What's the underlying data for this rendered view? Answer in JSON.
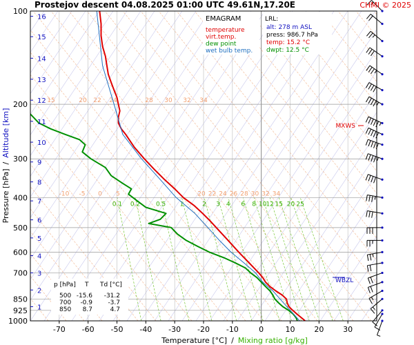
{
  "header": {
    "title": "Prostejov   descent   04.08.2025 01:00 UTC  49.61N,17.20E",
    "copyright": "CHMI © 2025"
  },
  "chart_data": {
    "type": "line",
    "subtype": "emagram",
    "xlabel_temp": "Temperature [°C]",
    "xlabel_sep": "/",
    "xlabel_mix": "Mixing ratio [g/kg]",
    "ylabel_pressure": "Pressure [hPa]",
    "ylabel_sep": "/",
    "ylabel_alt": "Altitude [km]",
    "xlim": [
      -80,
      40
    ],
    "ylim_pressure": [
      1000,
      100
    ],
    "y_scale": "log",
    "x_ticks": [
      -70,
      -60,
      -50,
      -40,
      -30,
      -20,
      -10,
      0,
      10,
      20,
      30
    ],
    "pressure_ticks": [
      100,
      200,
      300,
      400,
      500,
      600,
      700,
      850,
      925,
      1000
    ],
    "altitude_ticks": [
      {
        "km": "1",
        "p": 900
      },
      {
        "km": "2",
        "p": 795
      },
      {
        "km": "3",
        "p": 700
      },
      {
        "km": "4",
        "p": 616
      },
      {
        "km": "5",
        "p": 540
      },
      {
        "km": "6",
        "p": 472
      },
      {
        "km": "7",
        "p": 410
      },
      {
        "km": "8",
        "p": 356
      },
      {
        "km": "9",
        "p": 307
      },
      {
        "km": "10",
        "p": 265
      },
      {
        "km": "11",
        "p": 227
      },
      {
        "km": "12",
        "p": 194
      },
      {
        "km": "13",
        "p": 166
      },
      {
        "km": "14",
        "p": 142
      },
      {
        "km": "15",
        "p": 121
      },
      {
        "km": "16",
        "p": 104
      }
    ],
    "mixing_ratio_labels_low": [
      "0.1",
      "0.2",
      "0.5",
      "1",
      "2",
      "3",
      "4",
      "6",
      "8",
      "10",
      "12",
      "15",
      "20",
      "25"
    ],
    "mixing_ratio_values": [
      0.1,
      0.2,
      0.5,
      1,
      2,
      3,
      4,
      6,
      8,
      10,
      12,
      15,
      20,
      25
    ],
    "theta_labels_400": [
      "-10",
      "-5",
      "0",
      "5"
    ],
    "theta_e_labels_400": [
      "20",
      "22",
      "24",
      "26",
      "28",
      "30",
      "32",
      "34"
    ],
    "theta_labels_200": [
      "15",
      "20",
      "22",
      "24",
      "28",
      "30",
      "32",
      "34"
    ],
    "legend": {
      "title": "EMAGRAM",
      "items": [
        {
          "label": "temperature",
          "color": "#e00000"
        },
        {
          "label": "virt.temp.",
          "color": "#e00000"
        },
        {
          "label": "dew point",
          "color": "#009000"
        },
        {
          "label": "wet bulb temp.",
          "color": "#2070c0"
        }
      ]
    },
    "lrl": {
      "title": "LRL:",
      "alt": "alt: 278 m ASL",
      "press": "press: 986.7 hPa",
      "temp": "temp: 15.2 °C",
      "dwpt": "dwpt: 12.5 °C"
    },
    "levels_table": {
      "headers": [
        "p [hPa]",
        "T",
        "Td [°C]"
      ],
      "rows": [
        [
          "500",
          "-15.6",
          "-31.2"
        ],
        [
          "700",
          "-0.9",
          "-3.7"
        ],
        [
          "850",
          "8.7",
          "4.7"
        ]
      ]
    },
    "markers": {
      "mxws": "MXWS",
      "wbzl": "WBZL",
      "mxws_p": 230,
      "wbzl_p": 720
    },
    "series": [
      {
        "name": "temperature",
        "color": "#e00000",
        "points": [
          [
            1000,
            15.2
          ],
          [
            975,
            13.8
          ],
          [
            950,
            12.3
          ],
          [
            925,
            10.9
          ],
          [
            900,
            9.6
          ],
          [
            875,
            9.0
          ],
          [
            850,
            8.7
          ],
          [
            825,
            7.2
          ],
          [
            800,
            5.0
          ],
          [
            775,
            3.0
          ],
          [
            750,
            1.5
          ],
          [
            725,
            0.5
          ],
          [
            700,
            -0.9
          ],
          [
            675,
            -2.5
          ],
          [
            650,
            -4.2
          ],
          [
            600,
            -7.8
          ],
          [
            550,
            -11.5
          ],
          [
            500,
            -15.6
          ],
          [
            475,
            -17.8
          ],
          [
            450,
            -20.3
          ],
          [
            425,
            -23.2
          ],
          [
            400,
            -27.0
          ],
          [
            375,
            -30.0
          ],
          [
            350,
            -33.5
          ],
          [
            325,
            -37.0
          ],
          [
            300,
            -40.5
          ],
          [
            275,
            -44.0
          ],
          [
            250,
            -47.0
          ],
          [
            240,
            -48.5
          ],
          [
            230,
            -49.5
          ],
          [
            220,
            -49.5
          ],
          [
            210,
            -49.0
          ],
          [
            200,
            -49.5
          ],
          [
            190,
            -50.0
          ],
          [
            180,
            -51.0
          ],
          [
            170,
            -52.0
          ],
          [
            160,
            -53.0
          ],
          [
            150,
            -53.5
          ],
          [
            140,
            -54.0
          ],
          [
            130,
            -55.0
          ],
          [
            120,
            -55.5
          ],
          [
            110,
            -55.5
          ],
          [
            100,
            -56.0
          ]
        ]
      },
      {
        "name": "dew point",
        "color": "#009000",
        "points": [
          [
            1000,
            12.5
          ],
          [
            975,
            12.0
          ],
          [
            950,
            11.0
          ],
          [
            925,
            9.5
          ],
          [
            900,
            7.5
          ],
          [
            875,
            6.0
          ],
          [
            850,
            4.7
          ],
          [
            825,
            4.0
          ],
          [
            800,
            3.0
          ],
          [
            775,
            1.5
          ],
          [
            750,
            0.0
          ],
          [
            725,
            -1.5
          ],
          [
            700,
            -3.7
          ],
          [
            675,
            -5.5
          ],
          [
            650,
            -9.0
          ],
          [
            625,
            -13.0
          ],
          [
            600,
            -18.0
          ],
          [
            575,
            -22.0
          ],
          [
            550,
            -26.0
          ],
          [
            525,
            -29.0
          ],
          [
            500,
            -31.2
          ],
          [
            485,
            -39.0
          ],
          [
            470,
            -35.0
          ],
          [
            450,
            -33.0
          ],
          [
            430,
            -40.0
          ],
          [
            410,
            -43.0
          ],
          [
            390,
            -46.0
          ],
          [
            375,
            -45.0
          ],
          [
            360,
            -48.0
          ],
          [
            340,
            -52.0
          ],
          [
            320,
            -54.0
          ],
          [
            300,
            -59.0
          ],
          [
            285,
            -62.0
          ],
          [
            270,
            -61.0
          ],
          [
            260,
            -63.0
          ],
          [
            250,
            -68.0
          ],
          [
            240,
            -73.0
          ],
          [
            230,
            -77.0
          ],
          [
            215,
            -80.0
          ]
        ]
      },
      {
        "name": "wet bulb temp.",
        "color": "#2070c0",
        "points": [
          [
            1000,
            13.3
          ],
          [
            925,
            10.0
          ],
          [
            850,
            6.5
          ],
          [
            800,
            4.0
          ],
          [
            750,
            0.5
          ],
          [
            700,
            -2.0
          ],
          [
            650,
            -6.0
          ],
          [
            600,
            -10.5
          ],
          [
            550,
            -14.5
          ],
          [
            500,
            -18.5
          ],
          [
            450,
            -23.0
          ],
          [
            400,
            -29.5
          ],
          [
            350,
            -35.0
          ],
          [
            300,
            -41.5
          ],
          [
            250,
            -48.0
          ],
          [
            200,
            -51.0
          ],
          [
            150,
            -55.0
          ],
          [
            100,
            -57.0
          ]
        ]
      }
    ],
    "wind_barbs": [
      {
        "p": 1000,
        "dir": 200,
        "kt": 5
      },
      {
        "p": 950,
        "dir": 210,
        "kt": 10
      },
      {
        "p": 925,
        "dir": 220,
        "kt": 10
      },
      {
        "p": 850,
        "dir": 230,
        "kt": 15
      },
      {
        "p": 800,
        "dir": 240,
        "kt": 15
      },
      {
        "p": 750,
        "dir": 250,
        "kt": 20
      },
      {
        "p": 700,
        "dir": 250,
        "kt": 20
      },
      {
        "p": 650,
        "dir": 260,
        "kt": 20
      },
      {
        "p": 600,
        "dir": 260,
        "kt": 25
      },
      {
        "p": 550,
        "dir": 270,
        "kt": 25
      },
      {
        "p": 500,
        "dir": 270,
        "kt": 30
      },
      {
        "p": 450,
        "dir": 280,
        "kt": 30
      },
      {
        "p": 400,
        "dir": 280,
        "kt": 35
      },
      {
        "p": 350,
        "dir": 290,
        "kt": 40
      },
      {
        "p": 300,
        "dir": 290,
        "kt": 45
      },
      {
        "p": 270,
        "dir": 290,
        "kt": 50
      },
      {
        "p": 250,
        "dir": 295,
        "kt": 50
      },
      {
        "p": 230,
        "dir": 295,
        "kt": 55
      },
      {
        "p": 200,
        "dir": 300,
        "kt": 45
      },
      {
        "p": 180,
        "dir": 300,
        "kt": 40
      },
      {
        "p": 160,
        "dir": 305,
        "kt": 35
      },
      {
        "p": 140,
        "dir": 305,
        "kt": 30
      },
      {
        "p": 125,
        "dir": 310,
        "kt": 25
      },
      {
        "p": 110,
        "dir": 310,
        "kt": 20
      },
      {
        "p": 100,
        "dir": 315,
        "kt": 15
      }
    ]
  }
}
